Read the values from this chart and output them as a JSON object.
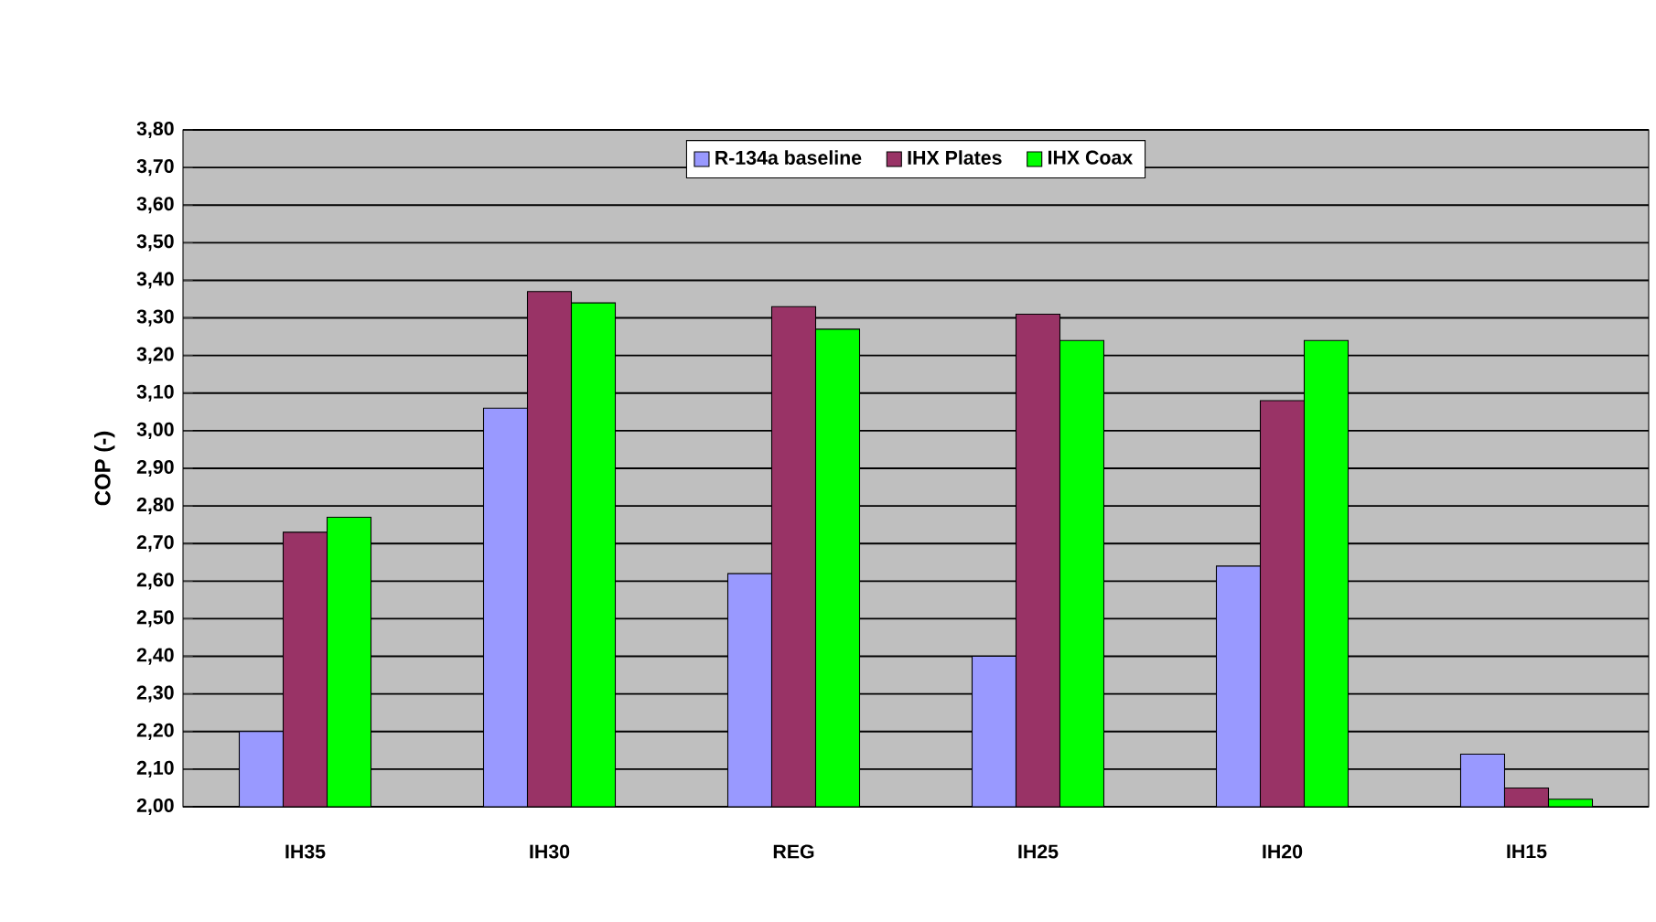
{
  "chart_data": {
    "type": "bar",
    "ylabel": "COP (-)",
    "categories": [
      "IH35",
      "IH30",
      "REG",
      "IH25",
      "IH20",
      "IH15"
    ],
    "series": [
      {
        "name": "R-134a baseline",
        "color": "#9999ff",
        "values": [
          2.2,
          3.06,
          2.62,
          2.4,
          2.64,
          2.14
        ]
      },
      {
        "name": "IHX Plates",
        "color": "#993366",
        "values": [
          2.73,
          3.37,
          3.33,
          3.31,
          3.08,
          2.05
        ]
      },
      {
        "name": "IHX Coax",
        "color": "#00ff00",
        "values": [
          2.77,
          3.34,
          3.27,
          3.24,
          3.24,
          2.02
        ]
      }
    ],
    "ylim": [
      2.0,
      3.8
    ],
    "yticks": [
      {
        "value": 2.0,
        "label": "2,00"
      },
      {
        "value": 2.1,
        "label": "2,10"
      },
      {
        "value": 2.2,
        "label": "2,20"
      },
      {
        "value": 2.3,
        "label": "2,30"
      },
      {
        "value": 2.4,
        "label": "2,40"
      },
      {
        "value": 2.5,
        "label": "2,50"
      },
      {
        "value": 2.6,
        "label": "2,60"
      },
      {
        "value": 2.7,
        "label": "2,70"
      },
      {
        "value": 2.8,
        "label": "2,80"
      },
      {
        "value": 2.9,
        "label": "2,90"
      },
      {
        "value": 3.0,
        "label": "3,00"
      },
      {
        "value": 3.1,
        "label": "3,10"
      },
      {
        "value": 3.2,
        "label": "3,20"
      },
      {
        "value": 3.3,
        "label": "3,30"
      },
      {
        "value": 3.4,
        "label": "3,40"
      },
      {
        "value": 3.5,
        "label": "3,50"
      },
      {
        "value": 3.6,
        "label": "3,60"
      },
      {
        "value": 3.7,
        "label": "3,70"
      },
      {
        "value": 3.8,
        "label": "3,80"
      }
    ],
    "grid": "y",
    "legend": "top"
  }
}
